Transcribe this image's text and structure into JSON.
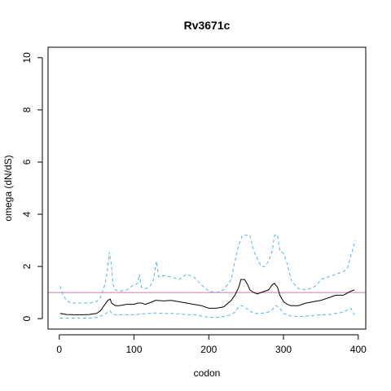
{
  "chart_data": {
    "type": "line",
    "title": "Rv3671c",
    "xlabel": "codon",
    "ylabel": "omega (dN/dS)",
    "xlim": [
      -15,
      410
    ],
    "ylim": [
      -0.4,
      10.4
    ],
    "x_ticks": [
      0,
      100,
      200,
      300,
      400
    ],
    "y_ticks": [
      0,
      2,
      4,
      6,
      8,
      10
    ],
    "grid": false,
    "reference_line": {
      "y": 1.0,
      "color": "#cc79a7"
    },
    "series": [
      {
        "style": "solid",
        "color": "#000000",
        "x": [
          1,
          10,
          20,
          30,
          40,
          50,
          55,
          60,
          65,
          68,
          70,
          75,
          80,
          90,
          100,
          105,
          110,
          115,
          120,
          125,
          128,
          130,
          140,
          150,
          160,
          170,
          180,
          190,
          200,
          210,
          220,
          230,
          235,
          240,
          243,
          248,
          252,
          255,
          260,
          265,
          270,
          275,
          280,
          285,
          288,
          292,
          295,
          300,
          305,
          310,
          320,
          330,
          340,
          350,
          360,
          370,
          380,
          390,
          395
        ],
        "y": [
          0.2,
          0.16,
          0.15,
          0.15,
          0.16,
          0.2,
          0.3,
          0.5,
          0.7,
          0.75,
          0.6,
          0.5,
          0.5,
          0.55,
          0.55,
          0.6,
          0.6,
          0.55,
          0.6,
          0.65,
          0.7,
          0.7,
          0.68,
          0.7,
          0.65,
          0.6,
          0.55,
          0.5,
          0.4,
          0.4,
          0.45,
          0.7,
          0.9,
          1.2,
          1.5,
          1.5,
          1.3,
          1.1,
          1.0,
          0.95,
          1.0,
          1.05,
          1.1,
          1.3,
          1.35,
          1.2,
          0.9,
          0.65,
          0.55,
          0.5,
          0.5,
          0.6,
          0.65,
          0.7,
          0.8,
          0.9,
          0.9,
          1.05,
          1.1
        ]
      },
      {
        "style": "dashed",
        "color": "#56b4e9",
        "x": [
          1,
          5,
          10,
          15,
          20,
          30,
          40,
          50,
          55,
          60,
          63,
          65,
          67,
          70,
          72,
          75,
          80,
          90,
          100,
          105,
          107,
          110,
          115,
          120,
          125,
          128,
          130,
          133,
          140,
          150,
          160,
          170,
          180,
          190,
          200,
          210,
          220,
          230,
          235,
          240,
          245,
          250,
          255,
          260,
          265,
          270,
          275,
          280,
          285,
          288,
          292,
          295,
          300,
          305,
          310,
          315,
          320,
          330,
          340,
          345,
          350,
          360,
          370,
          380,
          385,
          390,
          396
        ],
        "y": [
          1.25,
          0.9,
          0.7,
          0.6,
          0.6,
          0.6,
          0.6,
          0.65,
          0.8,
          1.2,
          1.6,
          2.0,
          2.55,
          2.0,
          1.3,
          1.1,
          1.05,
          1.1,
          1.3,
          1.35,
          1.7,
          1.2,
          1.15,
          1.2,
          1.4,
          1.8,
          2.2,
          1.6,
          1.65,
          1.6,
          1.5,
          1.7,
          1.6,
          1.3,
          1.05,
          1.0,
          1.1,
          1.5,
          2.2,
          2.8,
          3.2,
          3.2,
          3.2,
          2.6,
          2.3,
          2.0,
          2.0,
          2.2,
          2.6,
          3.2,
          3.2,
          2.6,
          2.5,
          2.1,
          1.5,
          1.3,
          1.15,
          1.1,
          1.2,
          1.3,
          1.5,
          1.6,
          1.7,
          1.8,
          1.9,
          2.4,
          3.0
        ]
      },
      {
        "style": "dashed",
        "color": "#56b4e9",
        "x": [
          1,
          10,
          20,
          30,
          40,
          50,
          55,
          60,
          65,
          68,
          70,
          75,
          80,
          90,
          100,
          110,
          120,
          130,
          140,
          150,
          160,
          170,
          180,
          190,
          200,
          210,
          220,
          230,
          235,
          240,
          245,
          250,
          255,
          260,
          270,
          280,
          285,
          290,
          295,
          300,
          310,
          320,
          330,
          340,
          350,
          360,
          370,
          380,
          390,
          395
        ],
        "y": [
          0.02,
          0.02,
          0.02,
          0.02,
          0.02,
          0.05,
          0.1,
          0.15,
          0.25,
          0.3,
          0.2,
          0.15,
          0.15,
          0.15,
          0.15,
          0.18,
          0.2,
          0.22,
          0.2,
          0.2,
          0.18,
          0.16,
          0.15,
          0.1,
          0.05,
          0.05,
          0.08,
          0.15,
          0.25,
          0.45,
          0.5,
          0.4,
          0.3,
          0.2,
          0.2,
          0.25,
          0.35,
          0.5,
          0.4,
          0.2,
          0.1,
          0.08,
          0.1,
          0.12,
          0.15,
          0.15,
          0.2,
          0.25,
          0.4,
          0.15
        ]
      }
    ]
  }
}
